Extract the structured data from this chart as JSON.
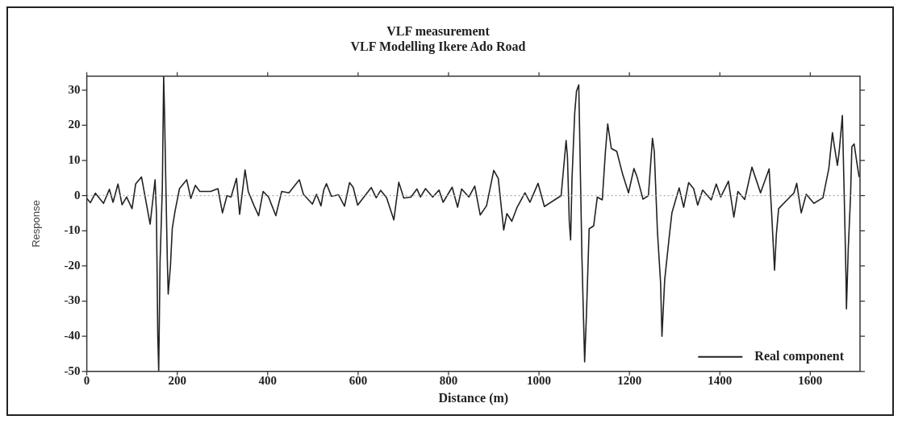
{
  "chart_data": {
    "type": "line",
    "title": "VLF measurement",
    "subtitle": "VLF Modelling Ikere Ado Road",
    "xlabel": "Distance (m)",
    "ylabel": "Response",
    "xlim": [
      0,
      1710
    ],
    "xticks": [
      0,
      200,
      400,
      600,
      800,
      1000,
      1200,
      1400,
      1600
    ],
    "ylim": [
      -50,
      34
    ],
    "yticks": [
      -50,
      -40,
      -30,
      -20,
      -10,
      0,
      10,
      20,
      30
    ],
    "grid": false,
    "legend": "bottom right",
    "marker": "none",
    "line_style": "solid",
    "ref_lines": [
      {
        "axis": "y",
        "value": 0,
        "color": "#aaaaaa",
        "line_style": "dotted"
      }
    ],
    "series": [
      {
        "name": "Real component",
        "color": "#222222",
        "x": [
          0,
          8,
          19,
          37,
          50,
          58,
          69,
          78,
          88,
          100,
          108,
          121,
          140,
          151,
          154,
          157,
          159,
          162,
          167,
          170,
          172,
          175,
          178,
          180,
          185,
          189,
          195,
          205,
          221,
          230,
          240,
          250,
          274,
          290,
          300,
          310,
          319,
          331,
          338,
          350,
          357,
          370,
          380,
          390,
          402,
          418,
          431,
          447,
          470,
          479,
          499,
          508,
          518,
          524,
          530,
          541,
          557,
          570,
          581,
          589,
          599,
          629,
          640,
          650,
          663,
          679,
          690,
          701,
          717,
          730,
          738,
          749,
          765,
          779,
          788,
          808,
          820,
          829,
          845,
          858,
          870,
          884,
          900,
          910,
          922,
          929,
          940,
          951,
          969,
          980,
          998,
          1012,
          1049,
          1060,
          1063,
          1067,
          1070,
          1073,
          1079,
          1083,
          1088,
          1095,
          1101,
          1105,
          1111,
          1121,
          1129,
          1140,
          1147,
          1152,
          1160,
          1172,
          1185,
          1198,
          1210,
          1217,
          1230,
          1242,
          1251,
          1255,
          1262,
          1269,
          1272,
          1278,
          1288,
          1294,
          1310,
          1320,
          1331,
          1342,
          1351,
          1362,
          1381,
          1392,
          1402,
          1419,
          1431,
          1440,
          1455,
          1471,
          1490,
          1509,
          1514,
          1521,
          1525,
          1530,
          1564,
          1570,
          1580,
          1591,
          1608,
          1628,
          1641,
          1649,
          1653,
          1660,
          1664,
          1671,
          1676,
          1679,
          1680,
          1684,
          1689,
          1692,
          1697,
          1703,
          1708
        ],
        "values": [
          -0.8,
          -2,
          0.7,
          -2.2,
          1.8,
          -1.9,
          3.3,
          -2.6,
          -0.4,
          -3.7,
          3.3,
          5.3,
          -8.1,
          4.5,
          -4.9,
          -40,
          -50,
          -19,
          2,
          34,
          23,
          2,
          -18,
          -28,
          -20,
          -9.4,
          -4.5,
          2,
          4.5,
          -0.8,
          2.9,
          1.2,
          1.2,
          2,
          -4.9,
          0,
          -0.4,
          4.9,
          -5.3,
          7.3,
          1.2,
          -2.9,
          -5.7,
          1.2,
          -0.4,
          -5.7,
          1.2,
          0.8,
          4.5,
          0.4,
          -2.4,
          0.4,
          -2.9,
          1.6,
          3.4,
          -0.2,
          0.2,
          -3,
          3.7,
          2.4,
          -2.7,
          2.3,
          -0.6,
          1.5,
          -0.6,
          -6.9,
          3.8,
          -0.7,
          -0.4,
          1.9,
          -0.4,
          2,
          -0.4,
          1.6,
          -1.9,
          2.4,
          -3.3,
          1.9,
          -0.4,
          2.7,
          -5.5,
          -2.9,
          7.2,
          4.9,
          -9.8,
          -5.1,
          -7.3,
          -3.5,
          0.8,
          -1.9,
          3.5,
          -3.1,
          0,
          15.7,
          11,
          -7.3,
          -12.6,
          4.5,
          23.4,
          29.7,
          31.5,
          -17.5,
          -47.3,
          -33.8,
          -9.4,
          -8.6,
          -0.4,
          -1.2,
          12.6,
          20.4,
          13.4,
          12.6,
          6.1,
          0.8,
          7.7,
          5.3,
          -1,
          0,
          16.3,
          12.6,
          -10.2,
          -24.9,
          -40,
          -24,
          -11.8,
          -4.9,
          2.2,
          -3.3,
          3.7,
          2,
          -2.7,
          1.6,
          -1.2,
          3.3,
          -0.4,
          4.1,
          -6.1,
          1.2,
          -1.1,
          8.1,
          0.8,
          7.6,
          -3.7,
          -21.2,
          -11,
          -3.7,
          0.8,
          3.5,
          -4.9,
          0.4,
          -2.2,
          -0.6,
          7.7,
          17.9,
          14.3,
          8.6,
          12.6,
          22.8,
          -5.3,
          -23.2,
          -32.2,
          -15.1,
          -0.4,
          13.9,
          14.7,
          9.4,
          5.3
        ]
      }
    ]
  }
}
